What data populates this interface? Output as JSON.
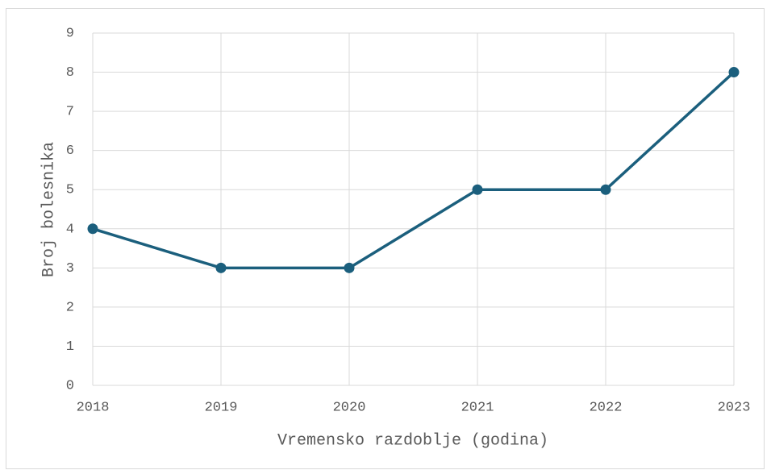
{
  "chart_data": {
    "type": "line",
    "x": [
      2018,
      2019,
      2020,
      2021,
      2022,
      2023
    ],
    "series": [
      {
        "name": "Broj bolesnika",
        "color": "#1b5f7d",
        "values": [
          4,
          3,
          3,
          5,
          5,
          8
        ]
      }
    ],
    "xlabel": "Vremensko razdoblje (godina)",
    "ylabel": "Broj bolesnika",
    "xlim": [
      2018,
      2023
    ],
    "xticks": [
      2018,
      2019,
      2020,
      2021,
      2022,
      2023
    ],
    "ylim": [
      0,
      9
    ],
    "yticks": [
      0,
      1,
      2,
      3,
      4,
      5,
      6,
      7,
      8,
      9
    ],
    "grid": true
  }
}
